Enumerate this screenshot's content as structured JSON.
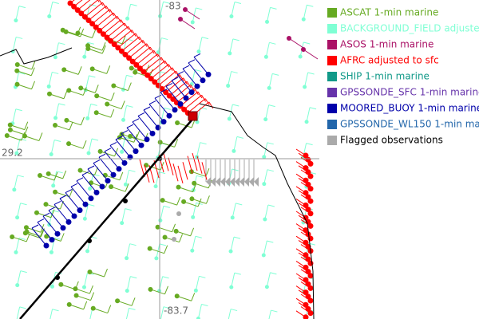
{
  "map": {
    "grid_labels": {
      "top": "-83",
      "bottom": "-83.7",
      "left": "29.2"
    },
    "legend": [
      {
        "label": "ASCAT 1-min marine",
        "color": "#66aa22"
      },
      {
        "label": "BACKGROUND_FIELD adjusted",
        "color": "#7fffd4"
      },
      {
        "label": "ASOS 1-min marine",
        "color": "#aa1166"
      },
      {
        "label": "AFRC adjusted to sfc",
        "color": "#ff0000"
      },
      {
        "label": "SHIP 1-min marine",
        "color": "#119988"
      },
      {
        "label": "GPSSONDE_SFC 1-min marine",
        "color": "#6633aa"
      },
      {
        "label": "MOORED_BUOY 1-min marine",
        "color": "#0000aa"
      },
      {
        "label": "GPSSONDE_WL150 1-min mar",
        "color": "#2266aa"
      },
      {
        "label": "Flagged observations",
        "color": "#aaaaaa"
      }
    ]
  }
}
